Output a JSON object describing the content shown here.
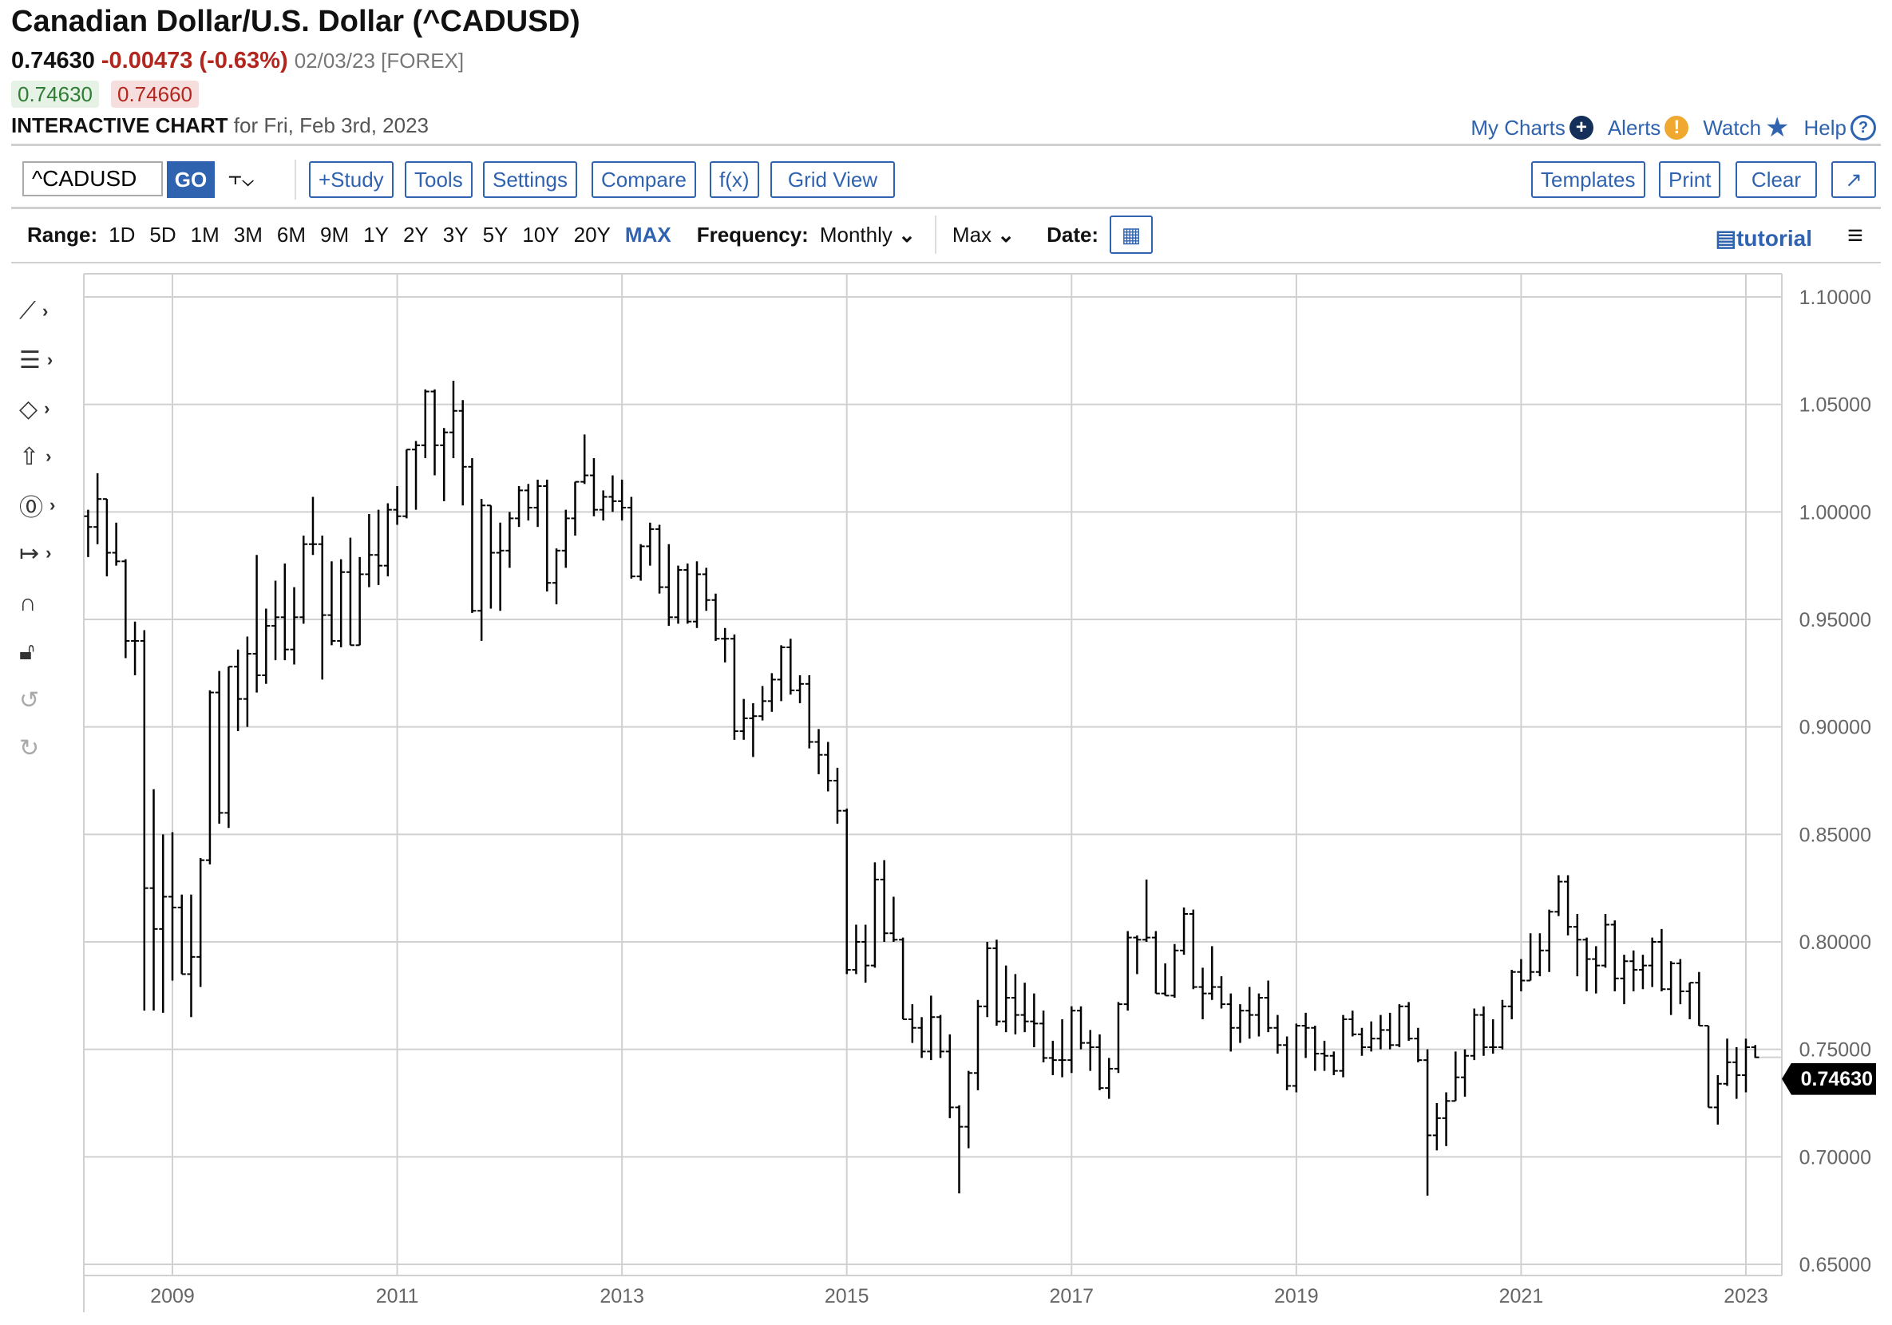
{
  "header": {
    "title": "Canadian Dollar/U.S. Dollar (^CADUSD)",
    "last": "0.74630",
    "change": "-0.00473 (-0.63%)",
    "date_exchange": "02/03/23 [FOREX]",
    "bid": "0.74630",
    "ask": "0.74660",
    "chart_label": "INTERACTIVE CHART",
    "chart_for": "for Fri, Feb 3rd, 2023"
  },
  "top_links": [
    {
      "label": "My Charts",
      "icon": "plus-circle-icon",
      "color": "#14305a"
    },
    {
      "label": "Alerts",
      "icon": "exclamation-circle-icon",
      "color": "#f0a830"
    },
    {
      "label": "Watch",
      "icon": "star-icon",
      "color": "#2f63b0"
    },
    {
      "label": "Help",
      "icon": "question-circle-icon",
      "color": "#2f63b0"
    }
  ],
  "toolbar": {
    "symbol": "^CADUSD",
    "go": "GO",
    "buttons": [
      "+Study",
      "Tools",
      "Settings",
      "Compare",
      "f(x)",
      "Grid View"
    ],
    "right_buttons": [
      "Templates",
      "Print",
      "Clear",
      "↗"
    ]
  },
  "rangebar": {
    "range_label": "Range:",
    "ranges": [
      "1D",
      "5D",
      "1M",
      "3M",
      "6M",
      "9M",
      "1Y",
      "2Y",
      "3Y",
      "5Y",
      "10Y",
      "20Y",
      "MAX"
    ],
    "active_range": "MAX",
    "frequency_label": "Frequency:",
    "frequency": "Monthly",
    "period": "Max",
    "date_label": "Date:",
    "tutorial": "tutorial"
  },
  "left_tools": [
    "line-draw-icon",
    "fib-icon",
    "shape-icon",
    "arrow-up-icon",
    "circle-zero-icon",
    "measure-icon",
    "magnet-icon",
    "unlock-icon",
    "undo-icon",
    "redo-icon"
  ],
  "colors": {
    "accent": "#2f63b0",
    "down": "#b3261e",
    "up": "#2e7d32",
    "bar": "#000000",
    "grid": "#d0d0d0"
  },
  "chart_data": {
    "type": "ohlc",
    "frequency": "monthly",
    "start": "2008-04",
    "end": "2023-02",
    "ylim": [
      0.65,
      1.1
    ],
    "y_ticks": [
      "0.65000",
      "0.70000",
      "0.75000",
      "0.80000",
      "0.85000",
      "0.90000",
      "0.95000",
      "1.00000",
      "1.05000",
      "1.10000"
    ],
    "x_ticks": [
      "2009",
      "2011",
      "2013",
      "2015",
      "2017",
      "2019",
      "2021",
      "2023"
    ],
    "grid": true,
    "last_price_label": "0.74630",
    "ohlc": [
      [
        0.998,
        1.001,
        0.979,
        0.993
      ],
      [
        0.993,
        1.018,
        0.985,
        1.006
      ],
      [
        1.006,
        1.006,
        0.97,
        0.981
      ],
      [
        0.981,
        0.995,
        0.975,
        0.977
      ],
      [
        0.977,
        0.978,
        0.932,
        0.94
      ],
      [
        0.94,
        0.949,
        0.924,
        0.94
      ],
      [
        0.94,
        0.945,
        0.768,
        0.825
      ],
      [
        0.825,
        0.871,
        0.768,
        0.806
      ],
      [
        0.806,
        0.85,
        0.767,
        0.821
      ],
      [
        0.821,
        0.851,
        0.782,
        0.816
      ],
      [
        0.816,
        0.822,
        0.785,
        0.785
      ],
      [
        0.785,
        0.822,
        0.765,
        0.793
      ],
      [
        0.793,
        0.839,
        0.779,
        0.838
      ],
      [
        0.838,
        0.917,
        0.836,
        0.916
      ],
      [
        0.916,
        0.926,
        0.855,
        0.86
      ],
      [
        0.86,
        0.928,
        0.853,
        0.928
      ],
      [
        0.928,
        0.936,
        0.898,
        0.913
      ],
      [
        0.913,
        0.942,
        0.9,
        0.934
      ],
      [
        0.934,
        0.98,
        0.916,
        0.924
      ],
      [
        0.924,
        0.955,
        0.92,
        0.947
      ],
      [
        0.947,
        0.968,
        0.931,
        0.951
      ],
      [
        0.951,
        0.976,
        0.931,
        0.936
      ],
      [
        0.936,
        0.965,
        0.929,
        0.951
      ],
      [
        0.951,
        0.989,
        0.948,
        0.985
      ],
      [
        0.985,
        1.007,
        0.98,
        0.985
      ],
      [
        0.985,
        0.989,
        0.922,
        0.952
      ],
      [
        0.952,
        0.977,
        0.938,
        0.94
      ],
      [
        0.94,
        0.978,
        0.937,
        0.972
      ],
      [
        0.972,
        0.988,
        0.938,
        0.938
      ],
      [
        0.938,
        0.979,
        0.938,
        0.971
      ],
      [
        0.971,
        0.999,
        0.965,
        0.98
      ],
      [
        0.98,
        1.001,
        0.966,
        0.975
      ],
      [
        0.975,
        1.004,
        0.97,
        1.001
      ],
      [
        1.001,
        1.012,
        0.994,
        0.998
      ],
      [
        0.998,
        1.029,
        0.997,
        1.029
      ],
      [
        1.029,
        1.033,
        1.001,
        1.031
      ],
      [
        1.031,
        1.057,
        1.025,
        1.056
      ],
      [
        1.056,
        1.057,
        1.017,
        1.031
      ],
      [
        1.031,
        1.039,
        1.005,
        1.037
      ],
      [
        1.037,
        1.061,
        1.025,
        1.047
      ],
      [
        1.047,
        1.052,
        1.003,
        1.021
      ],
      [
        1.021,
        1.025,
        0.953,
        0.954
      ],
      [
        0.954,
        1.006,
        0.94,
        1.003
      ],
      [
        1.003,
        1.003,
        0.955,
        0.981
      ],
      [
        0.981,
        0.995,
        0.954,
        0.982
      ],
      [
        0.982,
        1.0,
        0.974,
        0.997
      ],
      [
        0.997,
        1.012,
        0.993,
        1.01
      ],
      [
        1.01,
        1.013,
        0.996,
        1.002
      ],
      [
        1.002,
        1.015,
        0.993,
        1.012
      ],
      [
        1.012,
        1.015,
        0.963,
        0.967
      ],
      [
        0.967,
        0.983,
        0.957,
        0.982
      ],
      [
        0.982,
        1.001,
        0.974,
        0.997
      ],
      [
        0.997,
        1.014,
        0.989,
        1.014
      ],
      [
        1.014,
        1.036,
        1.013,
        1.017
      ],
      [
        1.017,
        1.025,
        0.998,
        1.001
      ],
      [
        1.001,
        1.01,
        0.996,
        1.007
      ],
      [
        1.007,
        1.017,
        1.0,
        1.005
      ],
      [
        1.005,
        1.015,
        0.996,
        1.002
      ],
      [
        1.002,
        1.007,
        0.969,
        0.97
      ],
      [
        0.97,
        0.985,
        0.968,
        0.984
      ],
      [
        0.984,
        0.995,
        0.975,
        0.992
      ],
      [
        0.992,
        0.994,
        0.962,
        0.965
      ],
      [
        0.965,
        0.985,
        0.947,
        0.951
      ],
      [
        0.951,
        0.975,
        0.948,
        0.973
      ],
      [
        0.973,
        0.976,
        0.948,
        0.949
      ],
      [
        0.949,
        0.977,
        0.946,
        0.971
      ],
      [
        0.971,
        0.974,
        0.954,
        0.959
      ],
      [
        0.959,
        0.962,
        0.94,
        0.941
      ],
      [
        0.941,
        0.946,
        0.93,
        0.941
      ],
      [
        0.941,
        0.943,
        0.894,
        0.898
      ],
      [
        0.898,
        0.913,
        0.894,
        0.904
      ],
      [
        0.904,
        0.911,
        0.886,
        0.905
      ],
      [
        0.905,
        0.919,
        0.903,
        0.912
      ],
      [
        0.912,
        0.925,
        0.907,
        0.922
      ],
      [
        0.922,
        0.938,
        0.912,
        0.937
      ],
      [
        0.937,
        0.941,
        0.915,
        0.917
      ],
      [
        0.917,
        0.924,
        0.911,
        0.92
      ],
      [
        0.92,
        0.924,
        0.89,
        0.893
      ],
      [
        0.893,
        0.899,
        0.878,
        0.887
      ],
      [
        0.887,
        0.893,
        0.87,
        0.875
      ],
      [
        0.875,
        0.881,
        0.855,
        0.861
      ],
      [
        0.861,
        0.862,
        0.785,
        0.787
      ],
      [
        0.787,
        0.808,
        0.785,
        0.8
      ],
      [
        0.8,
        0.808,
        0.781,
        0.789
      ],
      [
        0.789,
        0.837,
        0.788,
        0.829
      ],
      [
        0.829,
        0.838,
        0.8,
        0.804
      ],
      [
        0.804,
        0.821,
        0.8,
        0.801
      ],
      [
        0.801,
        0.802,
        0.764,
        0.764
      ],
      [
        0.764,
        0.771,
        0.753,
        0.76
      ],
      [
        0.76,
        0.765,
        0.746,
        0.749
      ],
      [
        0.749,
        0.775,
        0.745,
        0.765
      ],
      [
        0.765,
        0.766,
        0.746,
        0.749
      ],
      [
        0.749,
        0.757,
        0.718,
        0.723
      ],
      [
        0.723,
        0.724,
        0.683,
        0.714
      ],
      [
        0.714,
        0.74,
        0.704,
        0.739
      ],
      [
        0.739,
        0.773,
        0.731,
        0.77
      ],
      [
        0.77,
        0.8,
        0.765,
        0.797
      ],
      [
        0.797,
        0.801,
        0.761,
        0.763
      ],
      [
        0.763,
        0.789,
        0.758,
        0.774
      ],
      [
        0.774,
        0.785,
        0.757,
        0.766
      ],
      [
        0.766,
        0.781,
        0.758,
        0.763
      ],
      [
        0.763,
        0.776,
        0.751,
        0.762
      ],
      [
        0.762,
        0.768,
        0.744,
        0.746
      ],
      [
        0.746,
        0.754,
        0.738,
        0.745
      ],
      [
        0.745,
        0.764,
        0.737,
        0.745
      ],
      [
        0.745,
        0.77,
        0.739,
        0.768
      ],
      [
        0.768,
        0.77,
        0.75,
        0.753
      ],
      [
        0.753,
        0.759,
        0.74,
        0.751
      ],
      [
        0.751,
        0.757,
        0.731,
        0.732
      ],
      [
        0.732,
        0.746,
        0.727,
        0.741
      ],
      [
        0.741,
        0.772,
        0.739,
        0.771
      ],
      [
        0.771,
        0.805,
        0.768,
        0.802
      ],
      [
        0.802,
        0.803,
        0.785,
        0.801
      ],
      [
        0.801,
        0.829,
        0.8,
        0.802
      ],
      [
        0.802,
        0.805,
        0.776,
        0.776
      ],
      [
        0.776,
        0.79,
        0.775,
        0.775
      ],
      [
        0.775,
        0.799,
        0.774,
        0.796
      ],
      [
        0.796,
        0.816,
        0.794,
        0.813
      ],
      [
        0.813,
        0.815,
        0.778,
        0.779
      ],
      [
        0.779,
        0.788,
        0.764,
        0.776
      ],
      [
        0.776,
        0.798,
        0.773,
        0.779
      ],
      [
        0.779,
        0.784,
        0.769,
        0.771
      ],
      [
        0.771,
        0.776,
        0.749,
        0.76
      ],
      [
        0.76,
        0.771,
        0.753,
        0.768
      ],
      [
        0.768,
        0.779,
        0.755,
        0.766
      ],
      [
        0.766,
        0.776,
        0.756,
        0.774
      ],
      [
        0.774,
        0.782,
        0.758,
        0.76
      ],
      [
        0.76,
        0.766,
        0.748,
        0.752
      ],
      [
        0.752,
        0.756,
        0.731,
        0.733
      ],
      [
        0.733,
        0.762,
        0.73,
        0.761
      ],
      [
        0.761,
        0.767,
        0.746,
        0.76
      ],
      [
        0.76,
        0.761,
        0.74,
        0.748
      ],
      [
        0.748,
        0.754,
        0.74,
        0.747
      ],
      [
        0.747,
        0.749,
        0.738,
        0.74
      ],
      [
        0.74,
        0.766,
        0.737,
        0.764
      ],
      [
        0.764,
        0.768,
        0.756,
        0.757
      ],
      [
        0.757,
        0.76,
        0.747,
        0.751
      ],
      [
        0.751,
        0.763,
        0.749,
        0.755
      ],
      [
        0.755,
        0.766,
        0.75,
        0.759
      ],
      [
        0.759,
        0.767,
        0.75,
        0.752
      ],
      [
        0.752,
        0.771,
        0.751,
        0.77
      ],
      [
        0.77,
        0.772,
        0.754,
        0.755
      ],
      [
        0.755,
        0.76,
        0.744,
        0.745
      ],
      [
        0.745,
        0.75,
        0.682,
        0.71
      ],
      [
        0.71,
        0.725,
        0.703,
        0.718
      ],
      [
        0.718,
        0.73,
        0.705,
        0.726
      ],
      [
        0.726,
        0.749,
        0.726,
        0.737
      ],
      [
        0.737,
        0.75,
        0.728,
        0.747
      ],
      [
        0.747,
        0.769,
        0.745,
        0.766
      ],
      [
        0.766,
        0.77,
        0.747,
        0.751
      ],
      [
        0.751,
        0.764,
        0.748,
        0.751
      ],
      [
        0.751,
        0.773,
        0.75,
        0.77
      ],
      [
        0.77,
        0.787,
        0.764,
        0.786
      ],
      [
        0.786,
        0.792,
        0.777,
        0.782
      ],
      [
        0.782,
        0.804,
        0.782,
        0.786
      ],
      [
        0.786,
        0.804,
        0.784,
        0.796
      ],
      [
        0.796,
        0.815,
        0.786,
        0.814
      ],
      [
        0.814,
        0.831,
        0.812,
        0.828
      ],
      [
        0.828,
        0.831,
        0.803,
        0.807
      ],
      [
        0.807,
        0.813,
        0.784,
        0.801
      ],
      [
        0.801,
        0.802,
        0.777,
        0.792
      ],
      [
        0.792,
        0.798,
        0.776,
        0.789
      ],
      [
        0.789,
        0.813,
        0.788,
        0.808
      ],
      [
        0.808,
        0.81,
        0.777,
        0.783
      ],
      [
        0.783,
        0.794,
        0.771,
        0.791
      ],
      [
        0.791,
        0.796,
        0.777,
        0.787
      ],
      [
        0.787,
        0.794,
        0.778,
        0.789
      ],
      [
        0.789,
        0.802,
        0.779,
        0.8
      ],
      [
        0.8,
        0.806,
        0.777,
        0.778
      ],
      [
        0.778,
        0.791,
        0.766,
        0.79
      ],
      [
        0.79,
        0.792,
        0.771,
        0.777
      ],
      [
        0.777,
        0.781,
        0.764,
        0.781
      ],
      [
        0.781,
        0.786,
        0.761,
        0.761
      ],
      [
        0.761,
        0.761,
        0.723,
        0.723
      ],
      [
        0.723,
        0.738,
        0.715,
        0.734
      ],
      [
        0.734,
        0.755,
        0.733,
        0.744
      ],
      [
        0.744,
        0.751,
        0.727,
        0.738
      ],
      [
        0.738,
        0.755,
        0.73,
        0.751
      ],
      [
        0.751,
        0.752,
        0.746,
        0.7463
      ]
    ]
  }
}
